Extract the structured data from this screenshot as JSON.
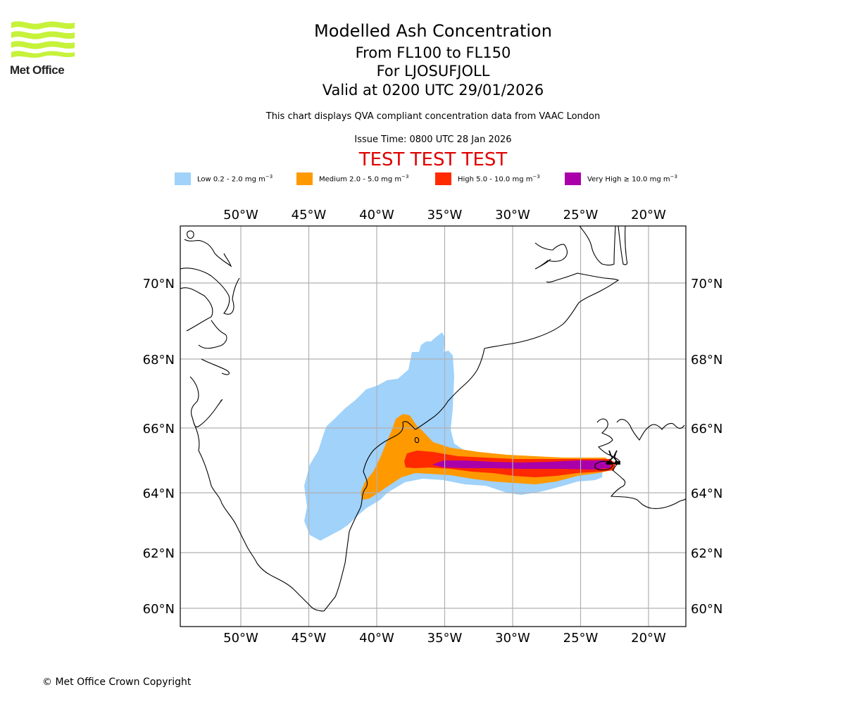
{
  "logo": {
    "text": "Met Office",
    "color": "#c6f23a"
  },
  "title": {
    "main": "Modelled Ash Concentration",
    "levels": "From FL100 to FL150",
    "volcano": "For LJOSUFJOLL",
    "valid": "Valid at 0200 UTC 29/01/2026"
  },
  "subtitle": "This chart displays QVA compliant concentration data from VAAC London",
  "issue_time": "Issue Time: 0800 UTC 28 Jan 2026",
  "test_banner": "TEST TEST TEST",
  "legend": [
    {
      "label": "Low 0.2 - 2.0 mg m",
      "unit_exp": "−3",
      "color": "#a0d2fa"
    },
    {
      "label": "Medium 2.0 - 5.0 mg m",
      "unit_exp": "−3",
      "color": "#ff9900"
    },
    {
      "label": "High 5.0 - 10.0 mg m",
      "unit_exp": "−3",
      "color": "#ff2a00"
    },
    {
      "label": "Very High ≥ 10.0 mg m",
      "unit_exp": "−3",
      "color": "#aa00aa"
    }
  ],
  "map": {
    "lon_ticks": [
      "50°W",
      "45°W",
      "40°W",
      "35°W",
      "30°W",
      "25°W",
      "20°W"
    ],
    "lat_ticks": [
      "70°N",
      "68°N",
      "66°N",
      "64°N",
      "62°N",
      "60°N"
    ],
    "lon_values": [
      -50,
      -45,
      -40,
      -35,
      -30,
      -25,
      -20
    ],
    "lat_values": [
      70,
      68,
      66,
      64,
      62,
      60
    ],
    "volcano_marker": "volcano-symbol",
    "gridline_color": "#b0b0b0",
    "coast_color": "#000000"
  },
  "copyright": "© Met Office Crown Copyright"
}
